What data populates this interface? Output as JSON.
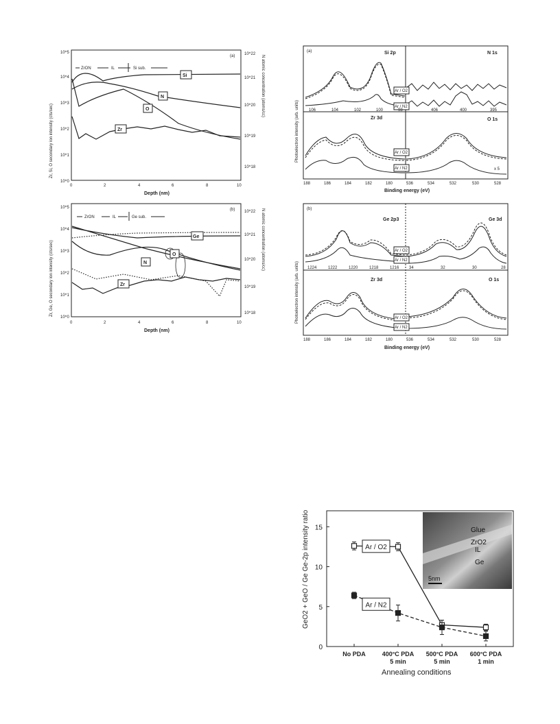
{
  "panel_a_sims": {
    "tag": "(a)",
    "left_axis_label": "Zr, Si, O secondary ion intensity (cts/sec)",
    "right_axis_label": "N atomic concentration (atoms/cc)",
    "x_label": "Depth (nm)",
    "regions": [
      "ZrON",
      "IL",
      "Si sub."
    ],
    "species": [
      "Si",
      "N",
      "O",
      "Zr"
    ],
    "left_ticks": [
      "10^0",
      "10^1",
      "10^2",
      "10^3",
      "10^4",
      "10^5"
    ],
    "right_ticks": [
      "10^18",
      "10^19",
      "10^20",
      "10^21",
      "10^22"
    ],
    "x_ticks": [
      "0",
      "2",
      "4",
      "6",
      "8",
      "10"
    ]
  },
  "panel_b_sims": {
    "tag": "(b)",
    "left_axis_label": "Zr, Ge, O secondary ion intensity (cts/sec)",
    "right_axis_label": "N atomic concentration (atoms/cc)",
    "x_label": "Depth (nm)",
    "regions": [
      "ZrON",
      "IL",
      "Ge sub."
    ],
    "species": [
      "Ge",
      "O",
      "N",
      "Zr"
    ],
    "left_ticks": [
      "10^0",
      "10^1",
      "10^2",
      "10^3",
      "10^4",
      "10^5"
    ],
    "right_ticks": [
      "10^18",
      "10^19",
      "10^20",
      "10^21",
      "10^22"
    ],
    "x_ticks": [
      "0",
      "2",
      "4",
      "6",
      "8",
      "10"
    ]
  },
  "panel_a_xps": {
    "tag": "(a)",
    "y_label": "Photoelectron intensity (arb. units)",
    "x_label": "Binding energy (eV)",
    "subpanels": [
      "Si 2p",
      "N 1s",
      "Zr 3d",
      "O 1s"
    ],
    "legend": [
      "Ar / O2",
      "Ar / N2"
    ],
    "scale_note": "x 5",
    "top_ticks": [
      "106",
      "104",
      "102",
      "100",
      "98",
      "406",
      "400",
      "395"
    ],
    "bottom_ticks": [
      "188",
      "186",
      "184",
      "182",
      "180",
      "536",
      "534",
      "532",
      "530",
      "528"
    ]
  },
  "panel_b_xps": {
    "tag": "(b)",
    "y_label": "Photoelectron intensity (arb. units)",
    "x_label": "Binding energy (eV)",
    "subpanels": [
      "Ge 2p3",
      "Ge 3d",
      "Zr 3d",
      "O 1s"
    ],
    "legend": [
      "Ar / O2",
      "Ar / N2"
    ],
    "top_ticks": [
      "1224",
      "1222",
      "1220",
      "1218",
      "1216",
      "34",
      "32",
      "30",
      "28"
    ],
    "bottom_ticks": [
      "188",
      "186",
      "184",
      "182",
      "180",
      "536",
      "534",
      "532",
      "530",
      "528"
    ]
  },
  "chart_data": {
    "type": "line",
    "xlabel": "Annealing conditions",
    "ylabel": "GeO2 + GeO / Ge  Ge-2p intensity ratio",
    "categories": [
      "No PDA",
      "400°C PDA 5 min",
      "500°C PDA 5 min",
      "600°C PDA 1 min"
    ],
    "ylim": [
      0,
      17
    ],
    "y_ticks": [
      0,
      5,
      10,
      15
    ],
    "series": [
      {
        "name": "Ar / O2",
        "values": [
          12.6,
          12.5,
          2.7,
          2.4
        ],
        "errors": [
          0.5,
          0.5,
          0.6,
          0.4
        ],
        "marker": "open-square",
        "line": "solid"
      },
      {
        "name": "Ar / N2",
        "values": [
          6.4,
          4.2,
          2.4,
          1.3
        ],
        "errors": [
          0.4,
          1.0,
          0.9,
          0.6
        ],
        "marker": "filled-square",
        "line": "dashed"
      }
    ],
    "inset": {
      "labels": [
        "Glue",
        "ZrO2",
        "IL",
        "Ge"
      ],
      "scale_bar": "5nm"
    }
  }
}
